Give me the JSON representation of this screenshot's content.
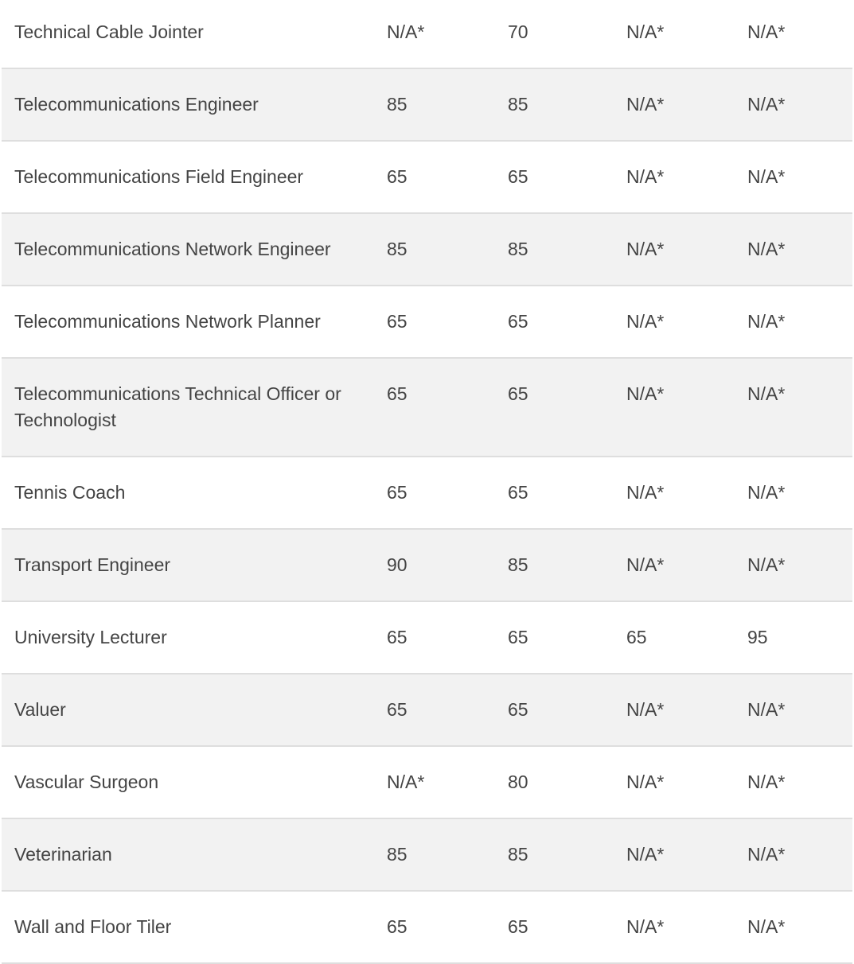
{
  "table": {
    "rows": [
      {
        "occupation": "Technical Cable Jointer",
        "v1": "N/A*",
        "v2": "70",
        "v3": "N/A*",
        "v4": "N/A*"
      },
      {
        "occupation": "Telecommunications Engineer",
        "v1": "85",
        "v2": "85",
        "v3": "N/A*",
        "v4": "N/A*"
      },
      {
        "occupation": "Telecommunications Field Engineer",
        "v1": "65",
        "v2": "65",
        "v3": "N/A*",
        "v4": "N/A*"
      },
      {
        "occupation": "Telecommunications Network Engineer",
        "v1": "85",
        "v2": "85",
        "v3": "N/A*",
        "v4": "N/A*"
      },
      {
        "occupation": "Telecommunications Network Planner",
        "v1": "65",
        "v2": "65",
        "v3": "N/A*",
        "v4": "N/A*"
      },
      {
        "occupation": "Telecommunications Technical Officer or Technologist",
        "v1": "65",
        "v2": "65",
        "v3": "N/A*",
        "v4": "N/A*"
      },
      {
        "occupation": "Tennis Coach",
        "v1": "65",
        "v2": "65",
        "v3": "N/A*",
        "v4": "N/A*"
      },
      {
        "occupation": "Transport Engineer",
        "v1": "90",
        "v2": "85",
        "v3": "N/A*",
        "v4": "N/A*"
      },
      {
        "occupation": "University Lecturer",
        "v1": "65",
        "v2": "65",
        "v3": "65",
        "v4": "95"
      },
      {
        "occupation": "Valuer",
        "v1": "65",
        "v2": "65",
        "v3": "N/A*",
        "v4": "N/A*"
      },
      {
        "occupation": "Vascular Surgeon",
        "v1": "N/A*",
        "v2": "80",
        "v3": "N/A*",
        "v4": "N/A*"
      },
      {
        "occupation": "Veterinarian",
        "v1": "85",
        "v2": "85",
        "v3": "N/A*",
        "v4": "N/A*"
      },
      {
        "occupation": "Wall and Floor Tiler",
        "v1": "65",
        "v2": "65",
        "v3": "N/A*",
        "v4": "N/A*"
      }
    ]
  }
}
